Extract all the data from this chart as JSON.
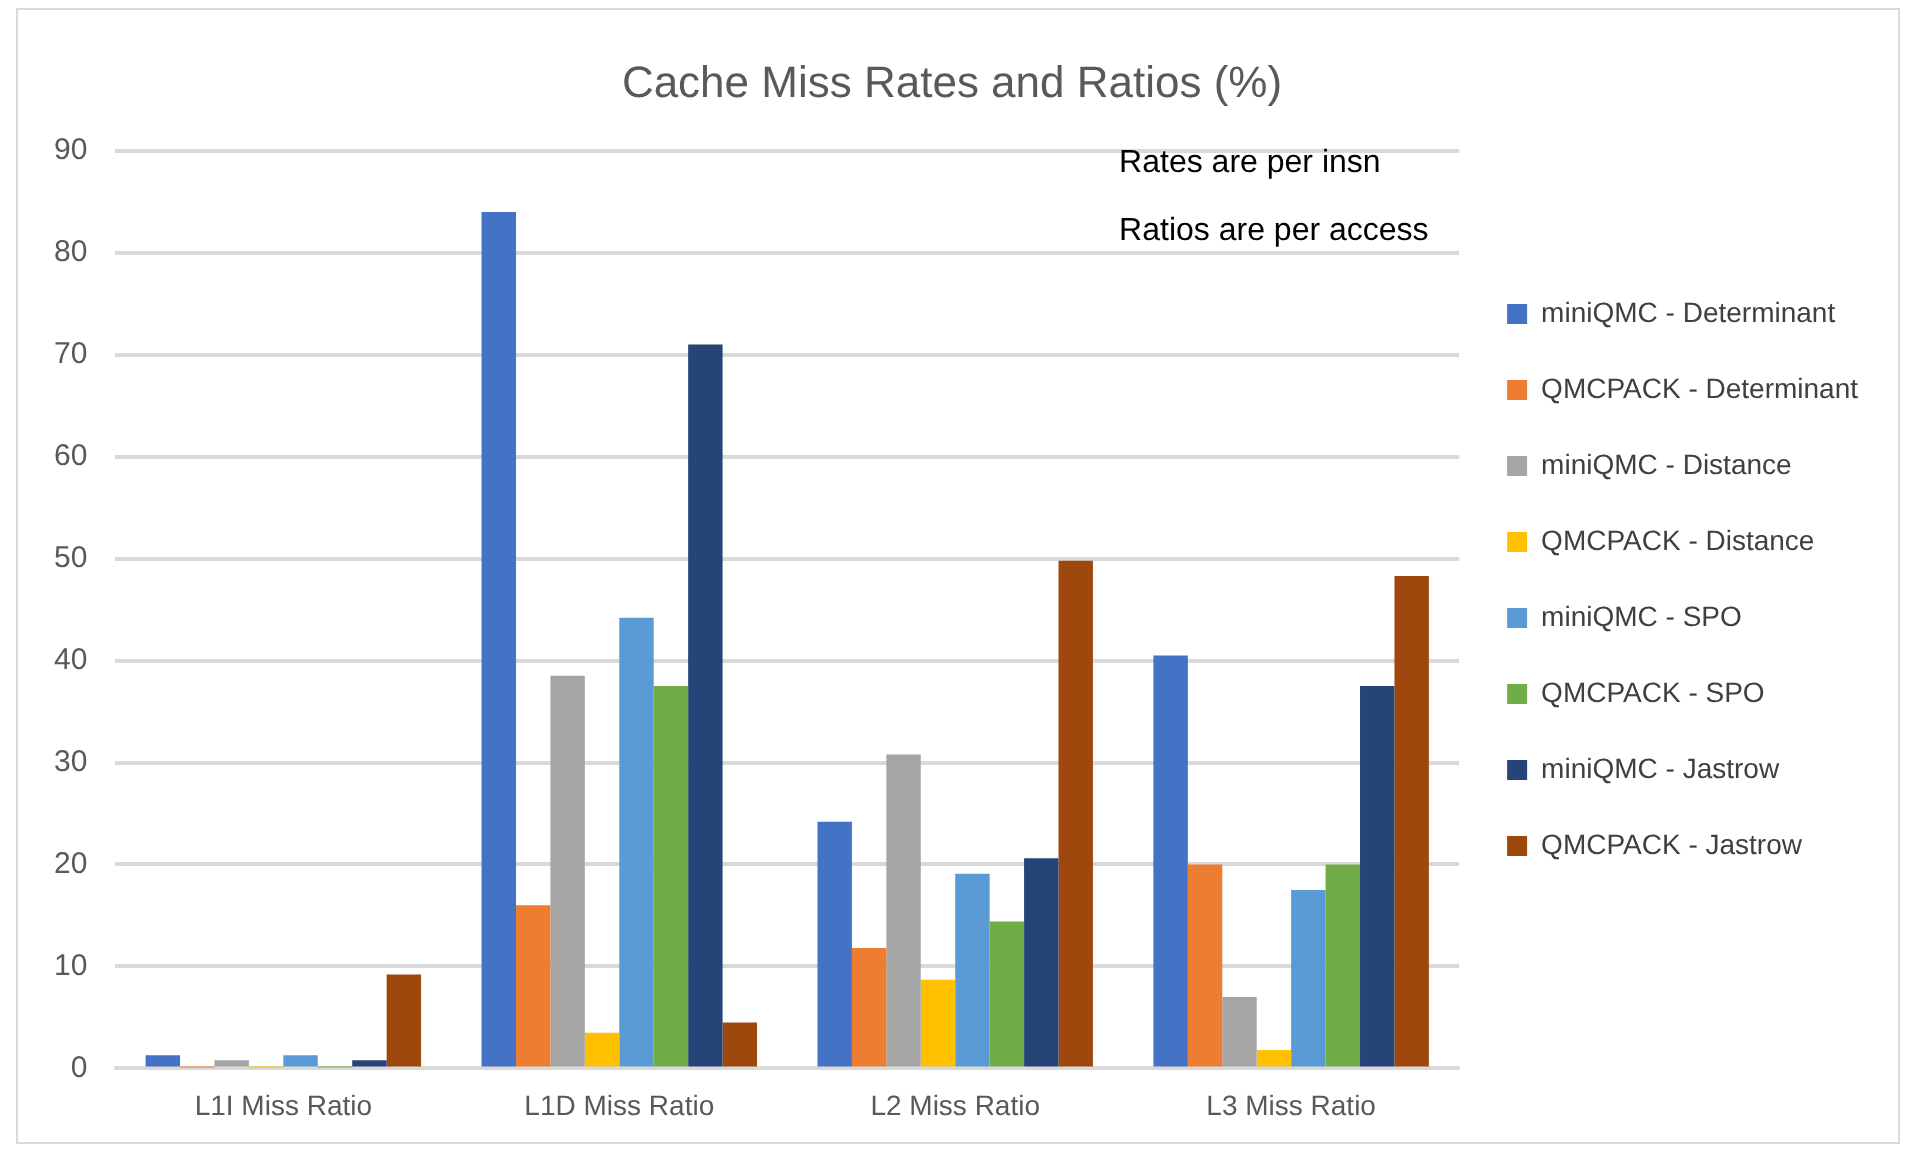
{
  "chart_data": {
    "type": "bar",
    "title": "Cache Miss Rates and Ratios (%)",
    "categories": [
      "L1I Miss Ratio",
      "L1D Miss Ratio",
      "L2 Miss Ratio",
      "L3 Miss Ratio"
    ],
    "series": [
      {
        "name": "miniQMC - Determinant",
        "color": "#4472c4",
        "values": [
          1.3,
          84,
          24.2,
          40.5
        ]
      },
      {
        "name": "QMCPACK - Determinant",
        "color": "#ed7d31",
        "values": [
          0.1,
          16,
          11.8,
          20
        ]
      },
      {
        "name": "miniQMC - Distance",
        "color": "#a5a5a5",
        "values": [
          0.8,
          38.5,
          30.8,
          7
        ]
      },
      {
        "name": "QMCPACK - Distance",
        "color": "#ffc000",
        "values": [
          0.1,
          3.5,
          8.7,
          1.8
        ]
      },
      {
        "name": "miniQMC - SPO",
        "color": "#5b9bd5",
        "values": [
          1.3,
          44.2,
          19.1,
          17.5
        ]
      },
      {
        "name": "QMCPACK - SPO",
        "color": "#70ad47",
        "values": [
          0.1,
          37.5,
          14.4,
          20
        ]
      },
      {
        "name": "miniQMC - Jastrow",
        "color": "#264478",
        "values": [
          0.8,
          71,
          20.6,
          37.5
        ]
      },
      {
        "name": "QMCPACK - Jastrow",
        "color": "#9e480e",
        "values": [
          9.2,
          4.5,
          49.8,
          48.3
        ]
      }
    ],
    "ylim": [
      0,
      90
    ],
    "yticks": [
      0,
      10,
      20,
      30,
      40,
      50,
      60,
      70,
      80,
      90
    ],
    "grid": "y",
    "legend": "right",
    "annotations": [
      "Rates are per insn",
      "Ratios are per access"
    ]
  }
}
